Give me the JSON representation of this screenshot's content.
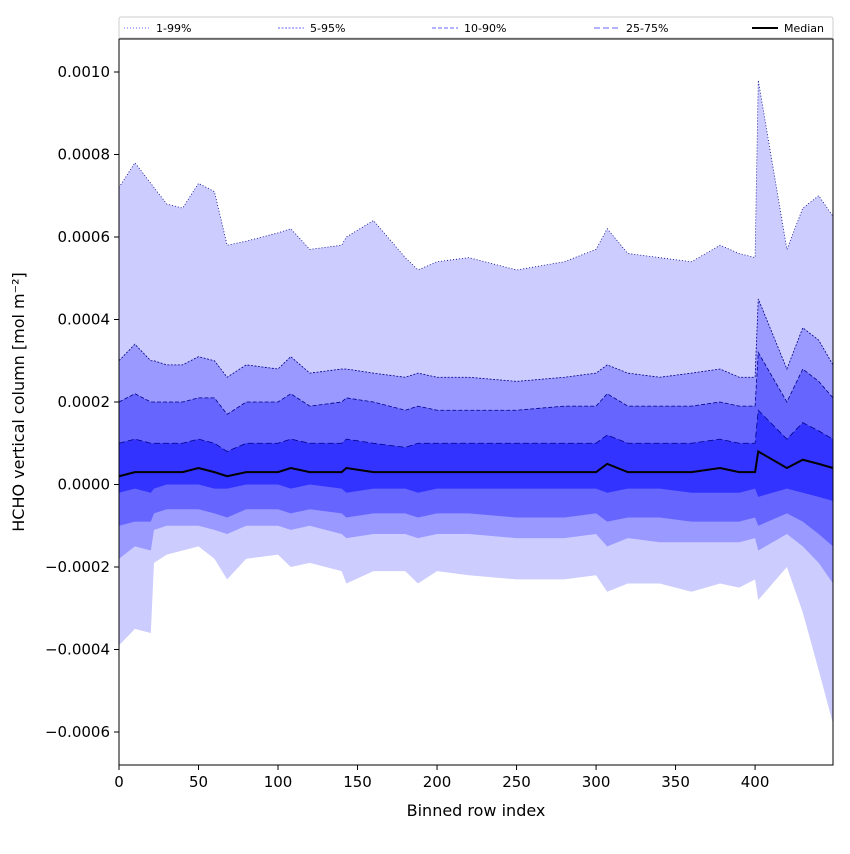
{
  "chart_data": {
    "type": "area",
    "title": "",
    "xlabel": "Binned row index",
    "ylabel": "HCHO vertical column [mol m⁻²]",
    "xlim": [
      0,
      449
    ],
    "ylim": [
      -0.00068,
      0.00108
    ],
    "xticks": [
      0,
      50,
      100,
      150,
      200,
      250,
      300,
      350,
      400
    ],
    "yticks": [
      -0.0006,
      -0.0004,
      -0.0002,
      0.0,
      0.0002,
      0.0004,
      0.0006,
      0.0008,
      0.001
    ],
    "ytick_labels": [
      "−0.0006",
      "−0.0004",
      "−0.0002",
      "0.0000",
      "0.0002",
      "0.0004",
      "0.0006",
      "0.0008",
      "0.0010"
    ],
    "legend_placement": "top (full width, single row)",
    "grid": false,
    "x": [
      0,
      10,
      20,
      22,
      30,
      40,
      50,
      60,
      68,
      80,
      100,
      108,
      120,
      140,
      143,
      160,
      180,
      188,
      200,
      220,
      250,
      280,
      300,
      307,
      320,
      340,
      360,
      378,
      390,
      400,
      402,
      420,
      430,
      440,
      449
    ],
    "series": [
      {
        "name": "1-99%",
        "style": "band",
        "fill": "#ccccff",
        "line": "#00008b",
        "upper": [
          0.00072,
          0.00078,
          0.00073,
          0.00072,
          0.00068,
          0.00067,
          0.00073,
          0.00071,
          0.00058,
          0.00059,
          0.00061,
          0.00062,
          0.00057,
          0.00058,
          0.0006,
          0.00064,
          0.00055,
          0.00052,
          0.00054,
          0.00055,
          0.00052,
          0.00054,
          0.00057,
          0.00062,
          0.00056,
          0.00055,
          0.00054,
          0.00058,
          0.00056,
          0.00055,
          0.00098,
          0.00057,
          0.00067,
          0.0007,
          0.00065
        ],
        "lower": [
          -0.00039,
          -0.00035,
          -0.00036,
          -0.00019,
          -0.00017,
          -0.00016,
          -0.00015,
          -0.00018,
          -0.00023,
          -0.00018,
          -0.00017,
          -0.0002,
          -0.00019,
          -0.00021,
          -0.00024,
          -0.00021,
          -0.00021,
          -0.00024,
          -0.00021,
          -0.00022,
          -0.00023,
          -0.00023,
          -0.00022,
          -0.00026,
          -0.00024,
          -0.00024,
          -0.00026,
          -0.00024,
          -0.00025,
          -0.00023,
          -0.00028,
          -0.0002,
          -0.00031,
          -0.00045,
          -0.00058
        ]
      },
      {
        "name": "5-95%",
        "style": "band",
        "fill": "#9999ff",
        "line": "#00008b",
        "upper": [
          0.0003,
          0.00034,
          0.0003,
          0.0003,
          0.00029,
          0.00029,
          0.00031,
          0.0003,
          0.00026,
          0.00029,
          0.00028,
          0.00031,
          0.00027,
          0.00028,
          0.00028,
          0.00027,
          0.00026,
          0.00027,
          0.00026,
          0.00026,
          0.00025,
          0.00026,
          0.00027,
          0.00029,
          0.00027,
          0.00026,
          0.00027,
          0.00028,
          0.00026,
          0.00026,
          0.00045,
          0.00028,
          0.00038,
          0.00035,
          0.00029
        ],
        "lower": [
          -0.00018,
          -0.00015,
          -0.00016,
          -0.00011,
          -0.0001,
          -0.0001,
          -0.0001,
          -0.00011,
          -0.00012,
          -0.0001,
          -0.0001,
          -0.00011,
          -0.0001,
          -0.00012,
          -0.00013,
          -0.00012,
          -0.00012,
          -0.00013,
          -0.00012,
          -0.00012,
          -0.00013,
          -0.00013,
          -0.00012,
          -0.00015,
          -0.00013,
          -0.00014,
          -0.00014,
          -0.00014,
          -0.00014,
          -0.00013,
          -0.00016,
          -0.00012,
          -0.00015,
          -0.00019,
          -0.00024
        ]
      },
      {
        "name": "10-90%",
        "style": "band",
        "fill": "#6666ff",
        "line": "#00008b",
        "upper": [
          0.0002,
          0.00022,
          0.0002,
          0.0002,
          0.0002,
          0.0002,
          0.00021,
          0.00021,
          0.00017,
          0.0002,
          0.0002,
          0.00022,
          0.00019,
          0.0002,
          0.00021,
          0.0002,
          0.00018,
          0.00019,
          0.00018,
          0.00018,
          0.00018,
          0.00019,
          0.00019,
          0.00022,
          0.00019,
          0.00019,
          0.00019,
          0.0002,
          0.00019,
          0.00019,
          0.00032,
          0.0002,
          0.00028,
          0.00025,
          0.00021
        ],
        "lower": [
          -0.0001,
          -9e-05,
          -9e-05,
          -7e-05,
          -6e-05,
          -6e-05,
          -6e-05,
          -7e-05,
          -8e-05,
          -6e-05,
          -6e-05,
          -7e-05,
          -6e-05,
          -7e-05,
          -8e-05,
          -7e-05,
          -7e-05,
          -8e-05,
          -7e-05,
          -7e-05,
          -8e-05,
          -8e-05,
          -7e-05,
          -9e-05,
          -8e-05,
          -8e-05,
          -9e-05,
          -9e-05,
          -9e-05,
          -8e-05,
          -0.0001,
          -7e-05,
          -9e-05,
          -0.00012,
          -0.00015
        ]
      },
      {
        "name": "25-75%",
        "style": "band",
        "fill": "#3333ff",
        "line": "#00008b",
        "upper": [
          0.0001,
          0.00011,
          0.0001,
          0.0001,
          0.0001,
          0.0001,
          0.00011,
          0.0001,
          8e-05,
          0.0001,
          0.0001,
          0.00011,
          0.0001,
          0.0001,
          0.00011,
          0.0001,
          9e-05,
          0.0001,
          0.0001,
          0.0001,
          0.0001,
          0.0001,
          0.0001,
          0.00012,
          0.0001,
          0.0001,
          0.0001,
          0.00011,
          0.0001,
          0.0001,
          0.00018,
          0.00011,
          0.00015,
          0.00013,
          0.00011
        ],
        "lower": [
          -2e-05,
          -1e-05,
          -2e-05,
          -1e-05,
          0.0,
          0.0,
          0.0,
          -1e-05,
          -1e-05,
          0.0,
          0.0,
          -1e-05,
          0.0,
          -1e-05,
          -2e-05,
          -1e-05,
          -1e-05,
          -2e-05,
          -1e-05,
          -1e-05,
          -1e-05,
          -1e-05,
          -1e-05,
          -2e-05,
          -1e-05,
          -1e-05,
          -2e-05,
          -2e-05,
          -2e-05,
          -1e-05,
          -3e-05,
          -1e-05,
          -2e-05,
          -3e-05,
          -4e-05
        ]
      },
      {
        "name": "Median",
        "style": "line",
        "line": "#000000",
        "values": [
          2e-05,
          3e-05,
          3e-05,
          3e-05,
          3e-05,
          3e-05,
          4e-05,
          3e-05,
          2e-05,
          3e-05,
          3e-05,
          4e-05,
          3e-05,
          3e-05,
          4e-05,
          3e-05,
          3e-05,
          3e-05,
          3e-05,
          3e-05,
          3e-05,
          3e-05,
          3e-05,
          5e-05,
          3e-05,
          3e-05,
          3e-05,
          4e-05,
          3e-05,
          3e-05,
          8e-05,
          4e-05,
          6e-05,
          5e-05,
          4e-05
        ]
      }
    ]
  }
}
